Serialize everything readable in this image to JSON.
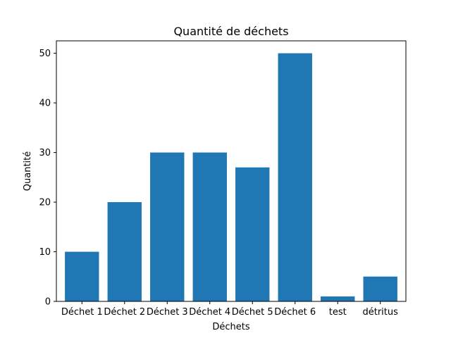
{
  "chart_data": {
    "type": "bar",
    "title": "Quantité de déchets",
    "xlabel": "Déchets",
    "ylabel": "Quantité",
    "categories": [
      "Déchet 1",
      "Déchet 2",
      "Déchet 3",
      "Déchet 4",
      "Déchet 5",
      "Déchet 6",
      "test",
      "détritus"
    ],
    "values": [
      10,
      20,
      30,
      30,
      27,
      50,
      1,
      5
    ],
    "ylim": [
      0,
      52.5
    ],
    "yticks": [
      0,
      10,
      20,
      30,
      40,
      50
    ],
    "bar_color": "#1f77b4",
    "grid": false,
    "legend": "none"
  }
}
